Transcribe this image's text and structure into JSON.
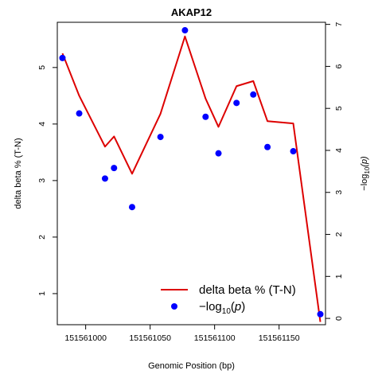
{
  "chart_data": {
    "type": "line",
    "title": "AKAP12",
    "xlabel": "Genomic Position (bp)",
    "ylabel": "delta beta % (T-N)",
    "y2label": "−log",
    "y2label_sub": "10",
    "y2label_arg": "(p)",
    "xlim": [
      151560978,
      151561186
    ],
    "ylim": [
      0.45,
      5.8
    ],
    "y2lim": [
      -0.15,
      7.05
    ],
    "xticks": [
      151561000,
      151561050,
      151561100,
      151561150
    ],
    "xtick_labels": [
      "151561000",
      "151561050",
      "151561100",
      "151561150"
    ],
    "yticks": [
      1,
      2,
      3,
      4,
      5
    ],
    "ytick_labels": [
      "1",
      "2",
      "3",
      "4",
      "5"
    ],
    "y2ticks": [
      0,
      1,
      2,
      3,
      4,
      5,
      6,
      7
    ],
    "y2tick_labels": [
      "0",
      "1",
      "2",
      "3",
      "4",
      "5",
      "6",
      "7"
    ],
    "legend_position": "bottom-right",
    "series": [
      {
        "name": "delta beta % (T-N)",
        "kind": "line",
        "axis": "left",
        "color": "#dd0000",
        "x": [
          151560982,
          151560995,
          151561015,
          151561022,
          151561036,
          151561058,
          151561077,
          151561093,
          151561103,
          151561117,
          151561130,
          151561141,
          151561161,
          151561182
        ],
        "y": [
          5.25,
          4.5,
          3.6,
          3.78,
          3.12,
          4.18,
          5.55,
          4.45,
          3.95,
          4.67,
          4.76,
          4.05,
          4.01,
          0.5
        ]
      },
      {
        "name": "−log10(p)",
        "kind": "points",
        "axis": "right",
        "color": "#0000ff",
        "x": [
          151560982,
          151560995,
          151561015,
          151561022,
          151561036,
          151561058,
          151561077,
          151561093,
          151561103,
          151561117,
          151561130,
          151561141,
          151561161,
          151561182
        ],
        "y": [
          6.2,
          4.88,
          3.33,
          3.58,
          2.65,
          4.32,
          6.86,
          4.8,
          3.93,
          5.13,
          5.33,
          4.08,
          3.98,
          0.1
        ]
      }
    ],
    "legend": {
      "line_label": "delta beta % (T-N)",
      "points_prefix": "−log",
      "points_sub": "10",
      "points_arg_open": "(",
      "points_arg": "p",
      "points_arg_close": ")"
    }
  }
}
